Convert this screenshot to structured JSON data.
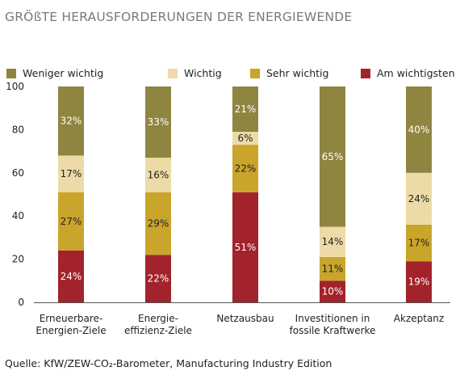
{
  "title": "GRÖßTE HERAUSFORDERUNGEN DER ENERGIEWENDE",
  "source": "Quelle: KfW/ZEW-CO₂-Barometer, Manufacturing Industry Edition",
  "chart_data": {
    "type": "bar",
    "stacked": true,
    "title": "GRÖßTE HERAUSFORDERUNGEN DER ENERGIEWENDE",
    "xlabel": "",
    "ylabel": "",
    "ylim": [
      0,
      100
    ],
    "yticks": [
      0,
      20,
      40,
      60,
      80,
      100
    ],
    "ytick_labels": [
      "0",
      "20",
      "40",
      "60",
      "80",
      "100"
    ],
    "grid": false,
    "legend_position": "top",
    "categories": [
      [
        "Erneuerbare-",
        "Energien-Ziele"
      ],
      [
        "Energie-",
        "effizienz-Ziele"
      ],
      [
        "Netzausbau"
      ],
      [
        "Investitionen in",
        "fossile Kraftwerke"
      ],
      [
        "Akzeptanz"
      ]
    ],
    "series": [
      {
        "name": "Am wichtigsten",
        "color": "#a2232b",
        "label_color": "#ffffff",
        "values": [
          24,
          22,
          51,
          10,
          19
        ],
        "labels": [
          "24%",
          "22%",
          "51%",
          "10%",
          "19%"
        ]
      },
      {
        "name": "Sehr wichtig",
        "color": "#c9a52b",
        "label_color": "#222222",
        "values": [
          27,
          29,
          22,
          11,
          17
        ],
        "labels": [
          "27%",
          "29%",
          "22%",
          "11%",
          "17%"
        ]
      },
      {
        "name": "Wichtig",
        "color": "#ecdba6",
        "label_color": "#222222",
        "values": [
          17,
          16,
          6,
          14,
          24
        ],
        "labels": [
          "17%",
          "16%",
          "6%",
          "14%",
          "24%"
        ]
      },
      {
        "name": "Weniger wichtig",
        "color": "#8e8540",
        "label_color": "#ffffff",
        "values": [
          32,
          33,
          21,
          65,
          40
        ],
        "labels": [
          "32%",
          "33%",
          "21%",
          "65%",
          "40%"
        ]
      }
    ],
    "legend_order": [
      "Weniger wichtig",
      "Wichtig",
      "Sehr wichtig",
      "Am wichtigsten"
    ]
  }
}
